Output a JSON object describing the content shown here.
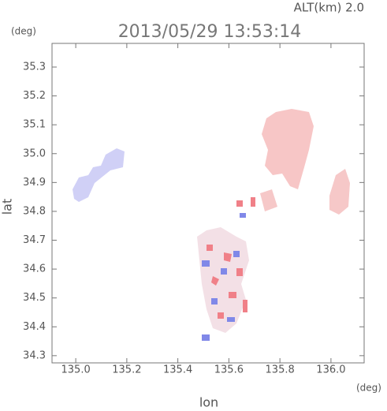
{
  "chart_data": {
    "type": "map",
    "title": "2013/05/29 13:53:14",
    "annotation": "ALT(km) 2.0",
    "x_label": "lon",
    "y_label": "lat",
    "x_unit": "(deg)",
    "y_unit": "(deg)",
    "xlim": [
      134.907,
      136.13
    ],
    "ylim": [
      34.275,
      35.382
    ],
    "xticks": [
      {
        "value": 135,
        "label": "135.0"
      },
      135.2,
      135.4,
      135.6,
      135.8,
      {
        "value": 136,
        "label": "136.0"
      }
    ],
    "yticks": [
      34.3,
      34.4,
      34.5,
      34.6,
      34.7,
      34.8,
      34.9,
      {
        "value": 35,
        "label": "35.0"
      },
      35.1,
      35.2,
      35.3
    ]
  }
}
